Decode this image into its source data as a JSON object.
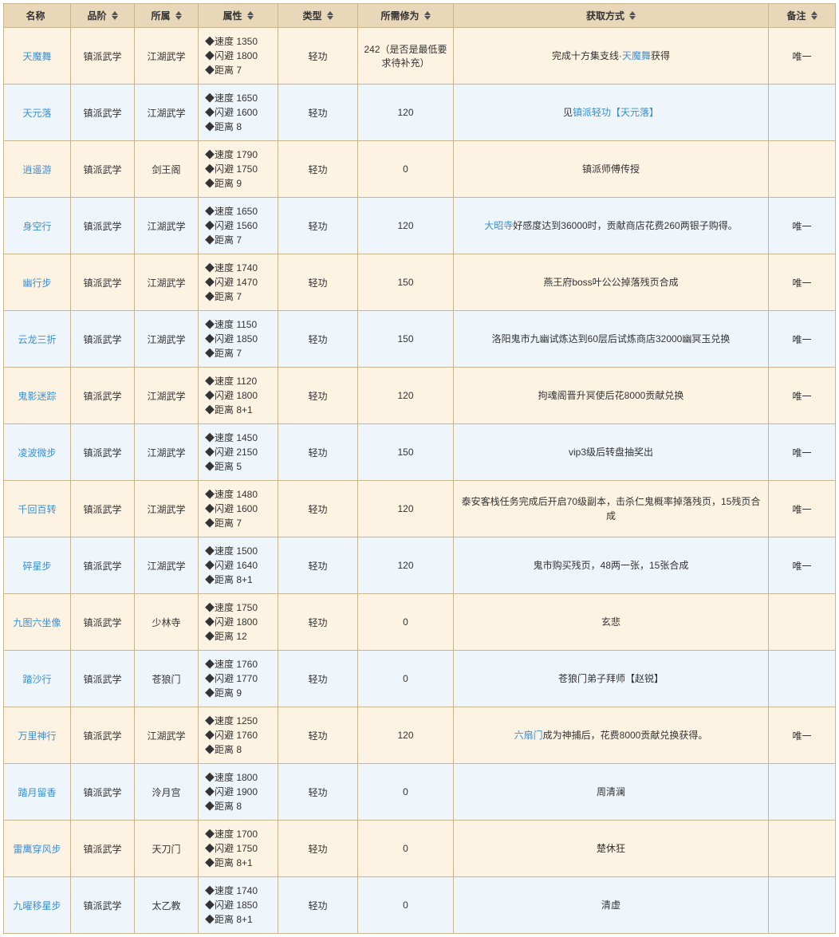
{
  "colors": {
    "header_bg": "#e8d7b8",
    "border": "#c9b68f",
    "row_even_bg": "#fdf3e2",
    "row_odd_bg": "#eef5fb",
    "link": "#3a8fd9",
    "text": "#333333"
  },
  "columns": [
    {
      "key": "name",
      "label": "名称",
      "filter": true,
      "sort": false,
      "class": "col-name"
    },
    {
      "key": "grade",
      "label": "品阶",
      "filter": false,
      "sort": true,
      "class": "col-grade"
    },
    {
      "key": "origin",
      "label": "所属",
      "filter": false,
      "sort": true,
      "class": "col-origin"
    },
    {
      "key": "attr",
      "label": "属性",
      "filter": false,
      "sort": true,
      "class": "col-attr"
    },
    {
      "key": "type",
      "label": "类型",
      "filter": false,
      "sort": true,
      "class": "col-type"
    },
    {
      "key": "req",
      "label": "所需修为",
      "filter": false,
      "sort": true,
      "class": "col-req"
    },
    {
      "key": "acq",
      "label": "获取方式",
      "filter": false,
      "sort": true,
      "class": "col-acq"
    },
    {
      "key": "note",
      "label": "备注",
      "filter": false,
      "sort": true,
      "class": "col-note"
    }
  ],
  "attr_labels": {
    "speed": "速度",
    "dodge": "闪避",
    "range": "距离"
  },
  "rows": [
    {
      "name": "天魔舞",
      "grade": "镇派武学",
      "origin": "江湖武学",
      "speed": "1350",
      "dodge": "1800",
      "range": "7",
      "type": "轻功",
      "req": "242（是否是最低要求待补充）",
      "acq_parts": [
        {
          "t": "完成十方集支线·"
        },
        {
          "t": "天魔舞",
          "link": true
        },
        {
          "t": "获得"
        }
      ],
      "note": "唯一"
    },
    {
      "name": "天元落",
      "grade": "镇派武学",
      "origin": "江湖武学",
      "speed": "1650",
      "dodge": "1600",
      "range": "8",
      "type": "轻功",
      "req": "120",
      "acq_parts": [
        {
          "t": "见"
        },
        {
          "t": "镇派轻功【天元落】",
          "link": true
        }
      ],
      "note": ""
    },
    {
      "name": "逍遥游",
      "grade": "镇派武学",
      "origin": "剑王阁",
      "speed": "1790",
      "dodge": "1750",
      "range": "9",
      "type": "轻功",
      "req": "0",
      "acq_parts": [
        {
          "t": "镇派师傅传授"
        }
      ],
      "note": ""
    },
    {
      "name": "身空行",
      "grade": "镇派武学",
      "origin": "江湖武学",
      "speed": "1650",
      "dodge": "1560",
      "range": "7",
      "type": "轻功",
      "req": "120",
      "acq_parts": [
        {
          "t": "大昭寺",
          "link": true
        },
        {
          "t": "好感度达到36000时，贡献商店花费260两银子购得。"
        }
      ],
      "note": "唯一"
    },
    {
      "name": "幽行步",
      "grade": "镇派武学",
      "origin": "江湖武学",
      "speed": "1740",
      "dodge": "1470",
      "range": "7",
      "type": "轻功",
      "req": "150",
      "acq_parts": [
        {
          "t": "燕王府boss叶公公掉落残页合成"
        }
      ],
      "note": "唯一"
    },
    {
      "name": "云龙三折",
      "grade": "镇派武学",
      "origin": "江湖武学",
      "speed": "1150",
      "dodge": "1850",
      "range": "7",
      "type": "轻功",
      "req": "150",
      "acq_parts": [
        {
          "t": "洛阳鬼市九幽试炼达到60层后试炼商店32000幽冥玉兑换"
        }
      ],
      "note": "唯一"
    },
    {
      "name": "鬼影迷踪",
      "grade": "镇派武学",
      "origin": "江湖武学",
      "speed": "1120",
      "dodge": "1800",
      "range": "8+1",
      "type": "轻功",
      "req": "120",
      "acq_parts": [
        {
          "t": "拘魂阁晋升冥使后花8000贡献兑换"
        }
      ],
      "note": "唯一"
    },
    {
      "name": "凌波微步",
      "grade": "镇派武学",
      "origin": "江湖武学",
      "speed": "1450",
      "dodge": "2150",
      "range": "5",
      "type": "轻功",
      "req": "150",
      "acq_parts": [
        {
          "t": "vip3级后转盘抽奖出"
        }
      ],
      "note": "唯一"
    },
    {
      "name": "千回百转",
      "grade": "镇派武学",
      "origin": "江湖武学",
      "speed": "1480",
      "dodge": "1600",
      "range": "7",
      "type": "轻功",
      "req": "120",
      "acq_parts": [
        {
          "t": "泰安客栈任务完成后开启70级副本，击杀仁鬼概率掉落残页，15残页合成"
        }
      ],
      "note": "唯一"
    },
    {
      "name": "碎星步",
      "grade": "镇派武学",
      "origin": "江湖武学",
      "speed": "1500",
      "dodge": "1640",
      "range": "8+1",
      "type": "轻功",
      "req": "120",
      "acq_parts": [
        {
          "t": "鬼市购买残页，48两一张，15张合成"
        }
      ],
      "note": "唯一"
    },
    {
      "name": "九图六坐像",
      "grade": "镇派武学",
      "origin": "少林寺",
      "speed": "1750",
      "dodge": "1800",
      "range": "12",
      "type": "轻功",
      "req": "0",
      "acq_parts": [
        {
          "t": "玄悲"
        }
      ],
      "note": ""
    },
    {
      "name": "踏沙行",
      "grade": "镇派武学",
      "origin": "苍狼门",
      "speed": "1760",
      "dodge": "1770",
      "range": "9",
      "type": "轻功",
      "req": "0",
      "acq_parts": [
        {
          "t": "苍狼门弟子拜师【赵锐】"
        }
      ],
      "note": ""
    },
    {
      "name": "万里神行",
      "grade": "镇派武学",
      "origin": "江湖武学",
      "speed": "1250",
      "dodge": "1760",
      "range": "8",
      "type": "轻功",
      "req": "120",
      "acq_parts": [
        {
          "t": "六扇门",
          "link": true
        },
        {
          "t": "成为神捕后，花费8000贡献兑换获得。"
        }
      ],
      "note": "唯一"
    },
    {
      "name": "踏月留香",
      "grade": "镇派武学",
      "origin": "泠月宫",
      "speed": "1800",
      "dodge": "1900",
      "range": "8",
      "type": "轻功",
      "req": "0",
      "acq_parts": [
        {
          "t": "周清澜"
        }
      ],
      "note": ""
    },
    {
      "name": "雷鹰穿风步",
      "grade": "镇派武学",
      "origin": "天刀门",
      "speed": "1700",
      "dodge": "1750",
      "range": "8+1",
      "type": "轻功",
      "req": "0",
      "acq_parts": [
        {
          "t": "楚休狂"
        }
      ],
      "note": ""
    },
    {
      "name": "九曜移星步",
      "grade": "镇派武学",
      "origin": "太乙教",
      "speed": "1740",
      "dodge": "1850",
      "range": "8+1",
      "type": "轻功",
      "req": "0",
      "acq_parts": [
        {
          "t": "清虚"
        }
      ],
      "note": ""
    }
  ]
}
